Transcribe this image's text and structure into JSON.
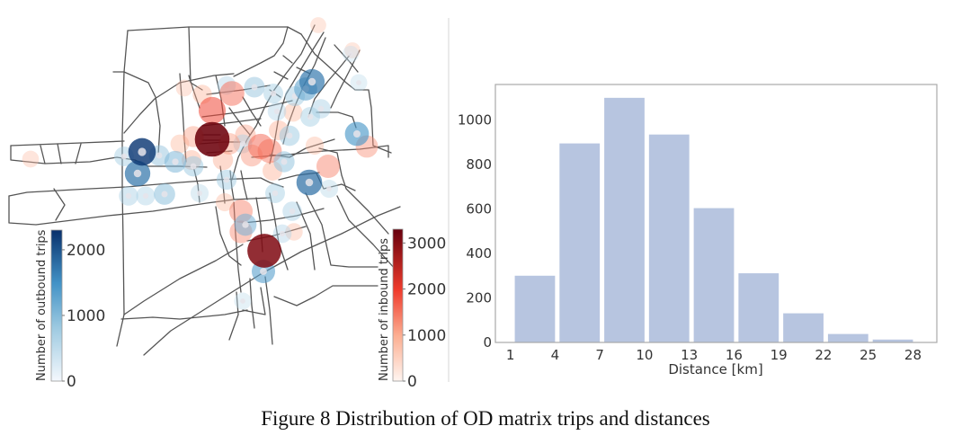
{
  "caption": "Figure 8 Distribution of OD matrix trips and distances",
  "chart_data": [
    {
      "type": "scatter",
      "subtype": "network-bubble-map",
      "title": "",
      "description": "Road network with origin (outbound) and destination (inbound) trip bubbles",
      "colorbars": [
        {
          "label": "Number of outbound trips",
          "colormap": "Blues",
          "range": [
            0,
            2300
          ],
          "ticks": [
            0,
            1000,
            2000
          ],
          "tick_labels": [
            "0",
            "1000",
            "2000"
          ],
          "color_low": "#f4f8fd",
          "color_high": "#08306b"
        },
        {
          "label": "Number of inbound trips",
          "colormap": "Reds",
          "range": [
            0,
            3300
          ],
          "ticks": [
            0,
            1000,
            2000,
            3000
          ],
          "tick_labels": [
            "0",
            "1000",
            "2000",
            "3000"
          ],
          "color_low": "#fff5f0",
          "color_high": "#67000d"
        }
      ],
      "series": [
        {
          "name": "Outbound trips",
          "marker": "ring",
          "points": [
            {
              "x": 158,
              "y": 169,
              "value": 2200
            },
            {
              "x": 153,
              "y": 193,
              "value": 1650
            },
            {
              "x": 347,
              "y": 91,
              "value": 1600
            },
            {
              "x": 344,
              "y": 203,
              "value": 1700
            },
            {
              "x": 397,
              "y": 149,
              "value": 1300
            },
            {
              "x": 293,
              "y": 302,
              "value": 1150
            },
            {
              "x": 340,
              "y": 99,
              "value": 1100
            },
            {
              "x": 273,
              "y": 250,
              "value": 900
            },
            {
              "x": 177,
              "y": 173,
              "value": 650
            },
            {
              "x": 195,
              "y": 180,
              "value": 850
            },
            {
              "x": 183,
              "y": 216,
              "value": 750
            },
            {
              "x": 143,
              "y": 218,
              "value": 450
            },
            {
              "x": 162,
              "y": 218,
              "value": 400
            },
            {
              "x": 138,
              "y": 174,
              "value": 500
            },
            {
              "x": 215,
              "y": 185,
              "value": 600
            },
            {
              "x": 283,
              "y": 97,
              "value": 650
            },
            {
              "x": 322,
              "y": 151,
              "value": 600
            },
            {
              "x": 357,
              "y": 121,
              "value": 450
            },
            {
              "x": 328,
              "y": 107,
              "value": 550
            },
            {
              "x": 304,
              "y": 104,
              "value": 500
            },
            {
              "x": 345,
              "y": 130,
              "value": 500
            },
            {
              "x": 316,
              "y": 180,
              "value": 700
            },
            {
              "x": 252,
              "y": 200,
              "value": 550
            },
            {
              "x": 306,
              "y": 215,
              "value": 500
            },
            {
              "x": 325,
              "y": 235,
              "value": 450
            },
            {
              "x": 270,
              "y": 335,
              "value": 200
            },
            {
              "x": 252,
              "y": 95,
              "value": 350
            },
            {
              "x": 270,
              "y": 160,
              "value": 400
            },
            {
              "x": 222,
              "y": 215,
              "value": 300
            },
            {
              "x": 314,
              "y": 260,
              "value": 350
            },
            {
              "x": 366,
              "y": 210,
              "value": 300
            },
            {
              "x": 399,
              "y": 92,
              "value": 200
            },
            {
              "x": 390,
              "y": 60,
              "value": 150
            },
            {
              "x": 308,
              "y": 124,
              "value": 350
            }
          ]
        },
        {
          "name": "Inbound trips",
          "marker": "disc",
          "points": [
            {
              "x": 236,
              "y": 155,
              "value": 3200
            },
            {
              "x": 294,
              "y": 279,
              "value": 3000
            },
            {
              "x": 236,
              "y": 123,
              "value": 1500
            },
            {
              "x": 258,
              "y": 104,
              "value": 1100
            },
            {
              "x": 290,
              "y": 163,
              "value": 1200
            },
            {
              "x": 300,
              "y": 168,
              "value": 1000
            },
            {
              "x": 365,
              "y": 185,
              "value": 900
            },
            {
              "x": 408,
              "y": 163,
              "value": 750
            },
            {
              "x": 268,
              "y": 235,
              "value": 900
            },
            {
              "x": 268,
              "y": 258,
              "value": 800
            },
            {
              "x": 215,
              "y": 152,
              "value": 600
            },
            {
              "x": 255,
              "y": 160,
              "value": 650
            },
            {
              "x": 273,
              "y": 150,
              "value": 550
            },
            {
              "x": 280,
              "y": 173,
              "value": 700
            },
            {
              "x": 213,
              "y": 178,
              "value": 450
            },
            {
              "x": 248,
              "y": 178,
              "value": 500
            },
            {
              "x": 225,
              "y": 105,
              "value": 400
            },
            {
              "x": 310,
              "y": 145,
              "value": 450
            },
            {
              "x": 326,
              "y": 125,
              "value": 350
            },
            {
              "x": 303,
              "y": 190,
              "value": 450
            },
            {
              "x": 250,
              "y": 225,
              "value": 300
            },
            {
              "x": 327,
              "y": 258,
              "value": 250
            },
            {
              "x": 350,
              "y": 162,
              "value": 300
            },
            {
              "x": 34,
              "y": 177,
              "value": 200
            },
            {
              "x": 354,
              "y": 28,
              "value": 150
            },
            {
              "x": 392,
              "y": 56,
              "value": 150
            },
            {
              "x": 200,
              "y": 160,
              "value": 350
            },
            {
              "x": 205,
              "y": 98,
              "value": 200
            }
          ]
        }
      ]
    },
    {
      "type": "bar",
      "subtype": "histogram",
      "title": "",
      "xlabel": "Distance [km]",
      "ylabel": "",
      "bins": [
        [
          1,
          4
        ],
        [
          4,
          7
        ],
        [
          7,
          10
        ],
        [
          10,
          13
        ],
        [
          13,
          16
        ],
        [
          16,
          19
        ],
        [
          19,
          22
        ],
        [
          22,
          25
        ],
        [
          25,
          28
        ]
      ],
      "values": [
        300,
        895,
        1100,
        935,
        604,
        311,
        131,
        38,
        13
      ],
      "xticks": [
        1,
        4,
        7,
        10,
        13,
        16,
        19,
        22,
        25,
        28
      ],
      "xtick_labels": [
        "1",
        "4",
        "7",
        "10",
        "13",
        "16",
        "19",
        "22",
        "25",
        "28"
      ],
      "yticks": [
        0,
        200,
        400,
        600,
        800,
        1000
      ],
      "ytick_labels": [
        "0",
        "200",
        "400",
        "600",
        "800",
        "1000"
      ],
      "xlim": [
        0,
        29.6
      ],
      "ylim": [
        0,
        1160
      ],
      "grid": false,
      "legend": "none",
      "bar_color": "#b7c5e0"
    }
  ]
}
